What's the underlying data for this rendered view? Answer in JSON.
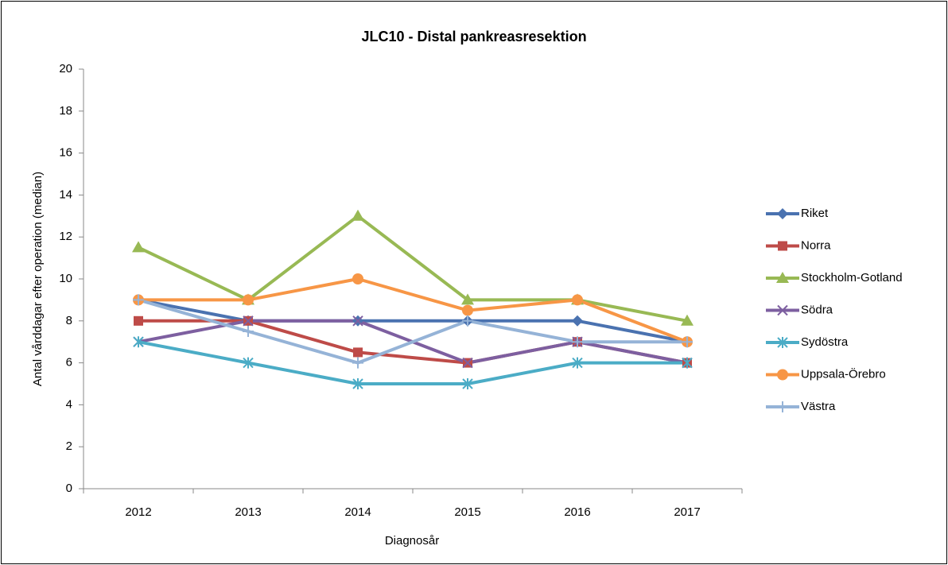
{
  "chart_data": {
    "type": "line",
    "title": "JLC10 - Distal pankreasresektion",
    "xlabel": "Diagnosår",
    "ylabel": "Antal vårddagar efter operation (median)",
    "categories": [
      "2012",
      "2013",
      "2014",
      "2015",
      "2016",
      "2017"
    ],
    "ylim": [
      0,
      20
    ],
    "yticks": [
      0,
      2,
      4,
      6,
      8,
      10,
      12,
      14,
      16,
      18,
      20
    ],
    "grid": false,
    "legend": "right",
    "series": [
      {
        "name": "Riket",
        "color": "#4a72b0",
        "marker": "diamond",
        "values": [
          9,
          8,
          8,
          8,
          8,
          7
        ]
      },
      {
        "name": "Norra",
        "color": "#be4b48",
        "marker": "square",
        "values": [
          8,
          8,
          6.5,
          6,
          7,
          6
        ]
      },
      {
        "name": "Stockholm-Gotland",
        "color": "#98b954",
        "marker": "triangle",
        "values": [
          11.5,
          9,
          13,
          9,
          9,
          8
        ]
      },
      {
        "name": "Södra",
        "color": "#7d5fa0",
        "marker": "x",
        "values": [
          7,
          8,
          8,
          6,
          7,
          6
        ]
      },
      {
        "name": "Sydöstra",
        "color": "#4bacc6",
        "marker": "asterisk",
        "values": [
          7,
          6,
          5,
          5,
          6,
          6
        ]
      },
      {
        "name": "Uppsala-Örebro",
        "color": "#f79646",
        "marker": "circle",
        "values": [
          9,
          9,
          10,
          8.5,
          9,
          7
        ]
      },
      {
        "name": "Västra",
        "color": "#95b3d7",
        "marker": "plus",
        "values": [
          9,
          7.5,
          6,
          8,
          7,
          7
        ]
      }
    ]
  }
}
